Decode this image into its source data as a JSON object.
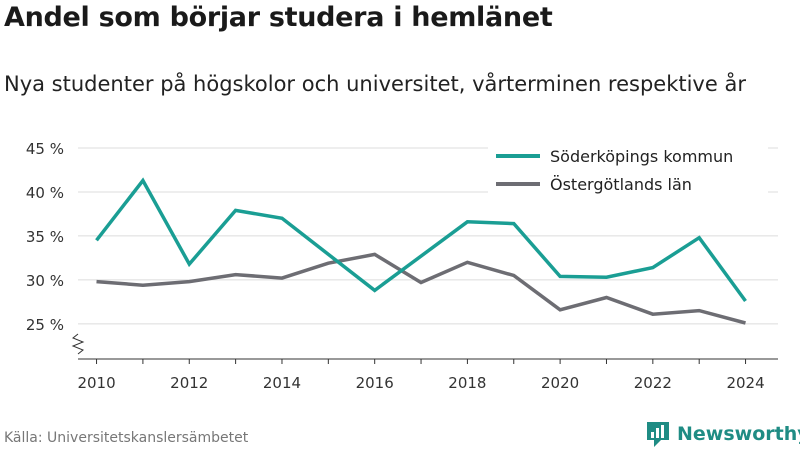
{
  "title": "Andel som börjar studera i hemlänet",
  "subtitle": "Nya studenter på högskolor och universitet, vårterminen respektive år",
  "source": "Källa: Universitetskanslersämbetet",
  "brand": {
    "name": "Newsworthy",
    "icon": "newsworthy-logo-icon",
    "color": "#1f8c84"
  },
  "chart_data": {
    "type": "line",
    "x": [
      2010,
      2011,
      2012,
      2013,
      2014,
      2015,
      2016,
      2017,
      2018,
      2019,
      2020,
      2021,
      2022,
      2023,
      2024
    ],
    "x_tick_labels": [
      "2010",
      "2012",
      "2014",
      "2016",
      "2018",
      "2020",
      "2022",
      "2024"
    ],
    "y_tick_labels": [
      "25 %",
      "30 %",
      "35 %",
      "40 %",
      "45 %"
    ],
    "y_ticks": [
      25,
      30,
      35,
      40,
      45
    ],
    "ylim": [
      21,
      45
    ],
    "y_axis_break": true,
    "grid": true,
    "legend_position": "top-right",
    "series": [
      {
        "name": "Söderköpings kommun",
        "color": "#1a9e94",
        "values": [
          34.5,
          41.3,
          31.8,
          37.9,
          37.0,
          null,
          28.8,
          null,
          36.6,
          36.4,
          30.4,
          30.3,
          31.4,
          34.8,
          27.6
        ]
      },
      {
        "name": "Östergötlands län",
        "color": "#6d6d73",
        "values": [
          29.8,
          29.4,
          29.8,
          30.6,
          30.2,
          31.9,
          32.9,
          29.7,
          32.0,
          30.5,
          26.6,
          28.0,
          26.1,
          26.5,
          25.1
        ]
      }
    ]
  }
}
